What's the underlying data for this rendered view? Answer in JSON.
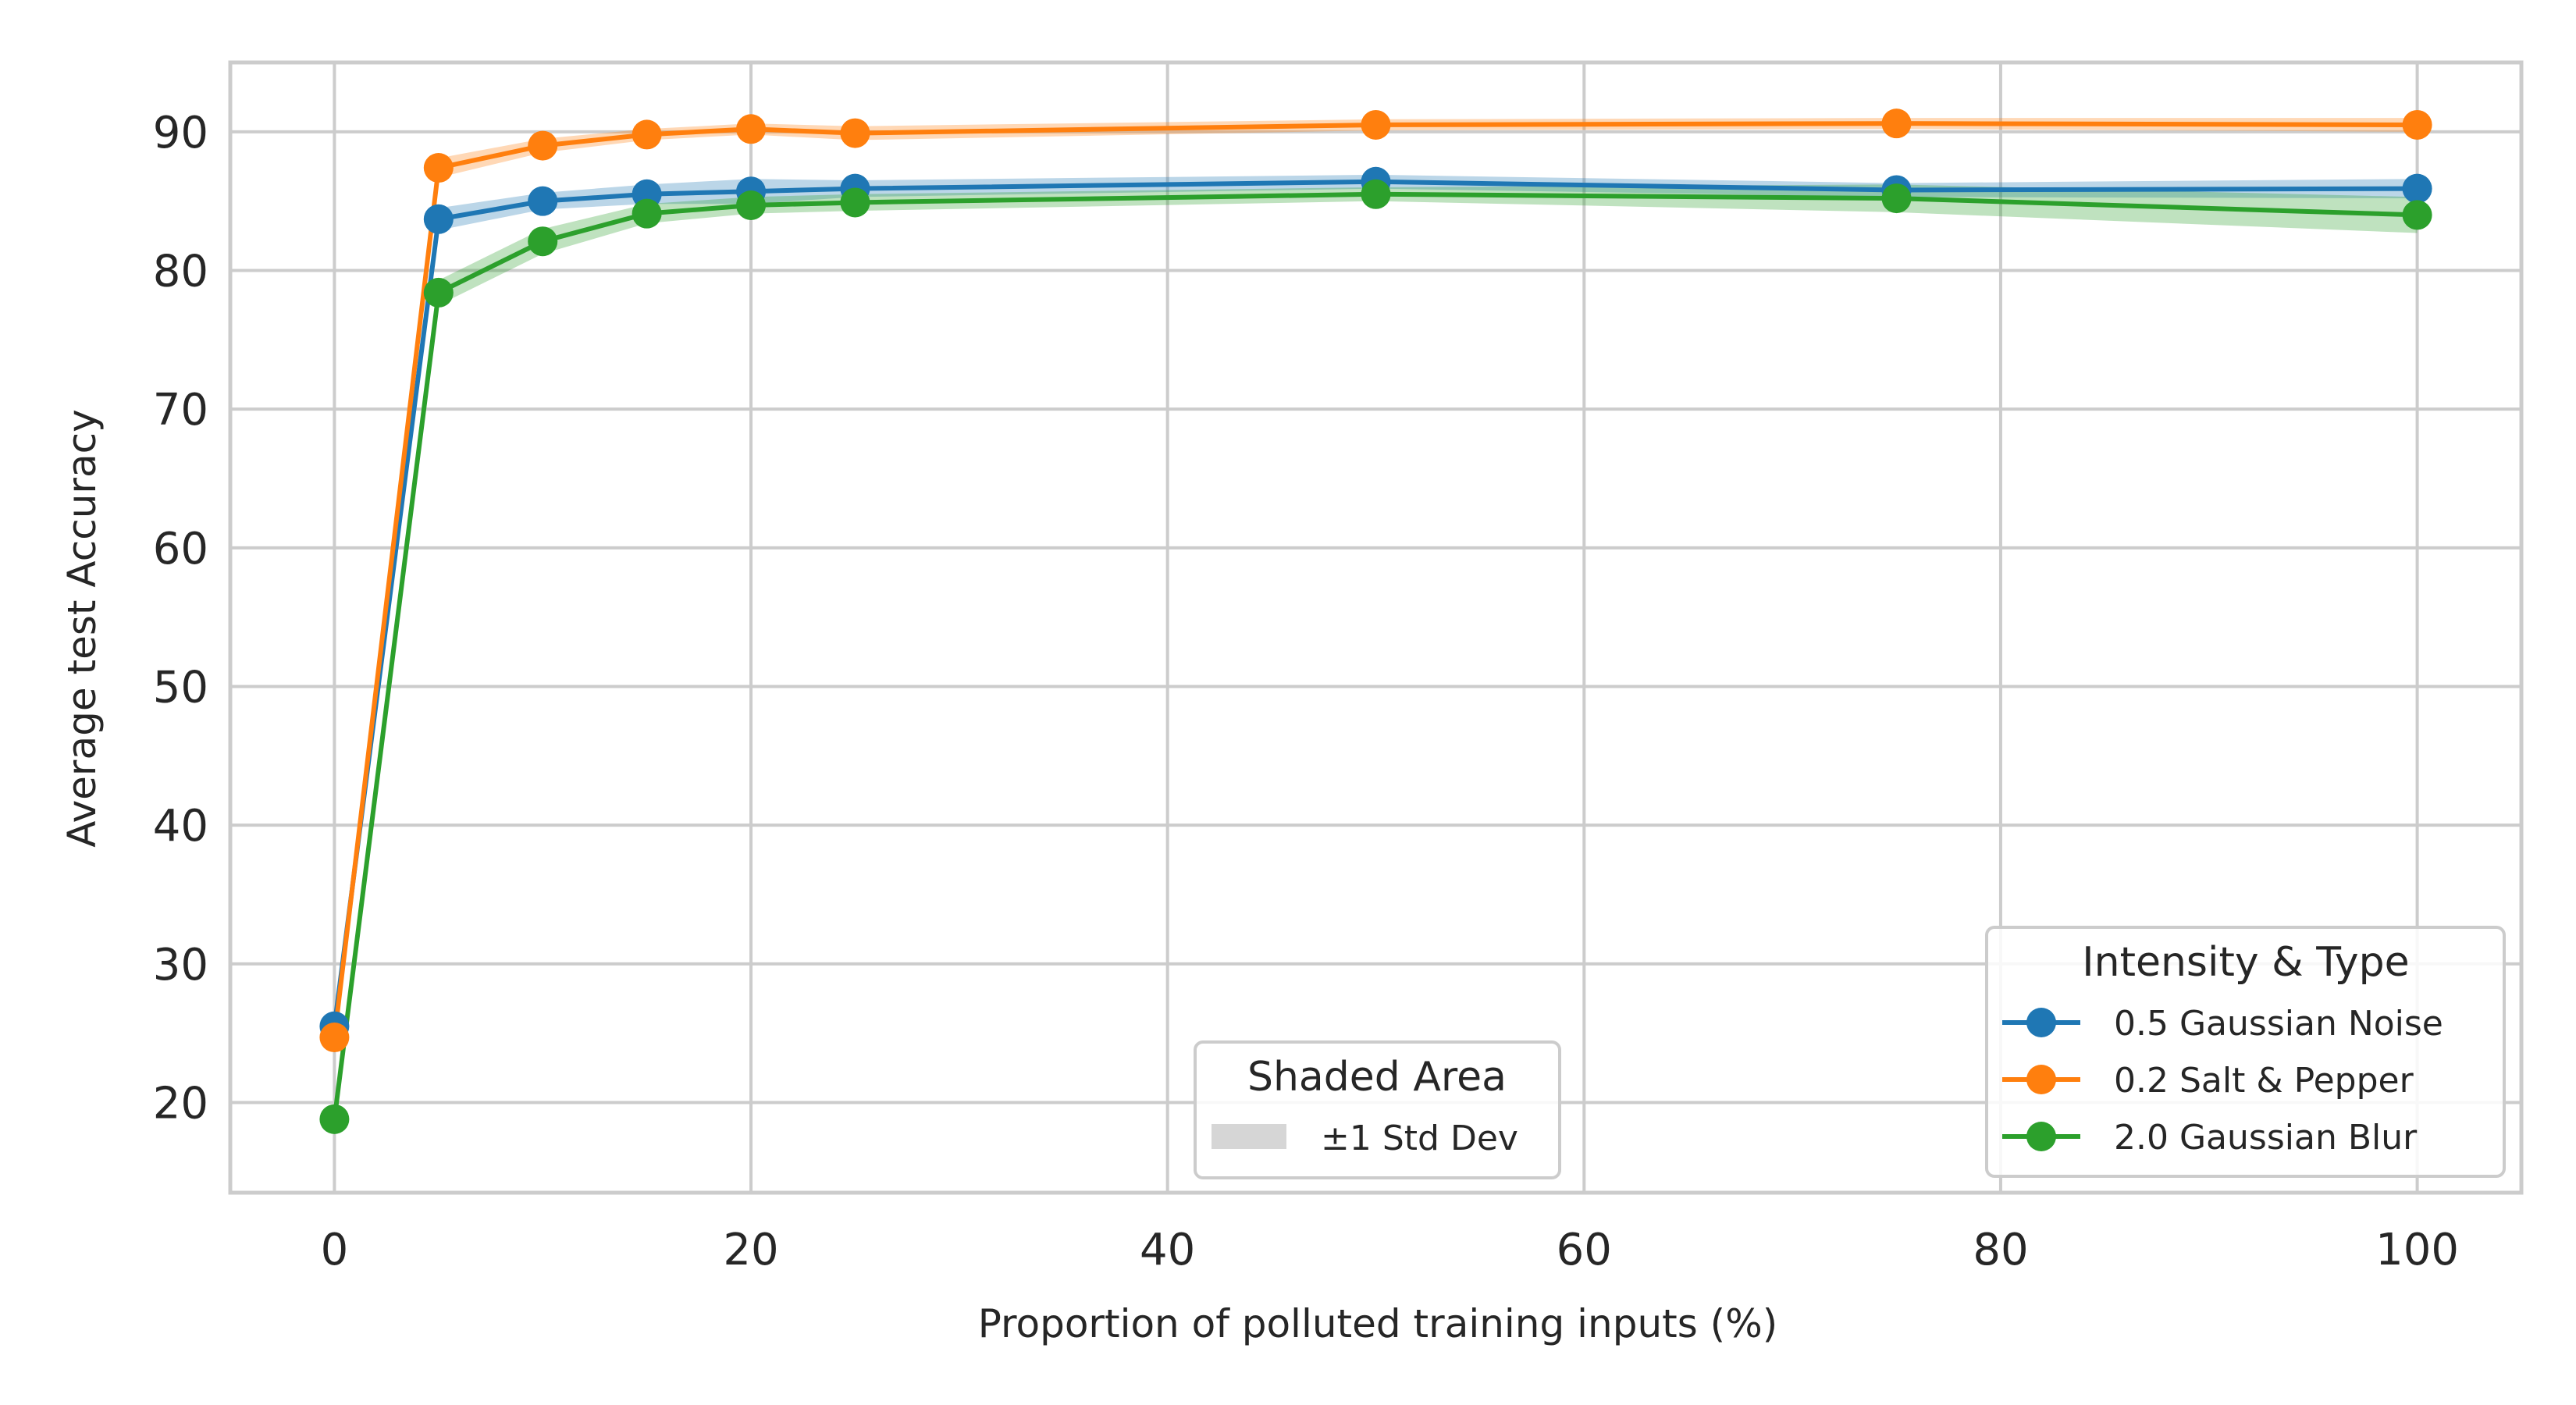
{
  "chart_data": {
    "type": "line",
    "title": "",
    "xlabel": "Proportion of polluted training inputs (%)",
    "ylabel": "Average test Accuracy",
    "xlim": [
      -5,
      105
    ],
    "ylim": [
      13.5,
      95
    ],
    "xticks": [
      0,
      20,
      40,
      60,
      80,
      100
    ],
    "yticks": [
      20,
      30,
      40,
      50,
      60,
      70,
      80,
      90
    ],
    "x": [
      0,
      5,
      10,
      15,
      20,
      25,
      50,
      75,
      100
    ],
    "grid": true,
    "series": [
      {
        "name": "0.5 Gaussian Noise",
        "color": "#1f77b4",
        "values": [
          25.5,
          83.7,
          85.0,
          85.5,
          85.7,
          85.9,
          86.4,
          85.8,
          85.9
        ],
        "std": [
          1.0,
          0.8,
          0.6,
          0.7,
          0.9,
          0.6,
          0.5,
          0.5,
          0.7
        ]
      },
      {
        "name": "0.2 Salt & Pepper",
        "color": "#ff7f0e",
        "values": [
          24.7,
          87.4,
          89.0,
          89.8,
          90.2,
          89.9,
          90.5,
          90.6,
          90.5
        ],
        "std": [
          1.2,
          0.7,
          0.5,
          0.4,
          0.4,
          0.5,
          0.4,
          0.4,
          0.5
        ]
      },
      {
        "name": "2.0 Gaussian Blur",
        "color": "#2ca02c",
        "values": [
          18.8,
          78.4,
          82.1,
          84.1,
          84.7,
          84.9,
          85.5,
          85.2,
          84.0
        ],
        "std": [
          1.2,
          0.9,
          0.9,
          0.7,
          0.6,
          0.6,
          0.5,
          1.0,
          1.3
        ]
      }
    ],
    "legends": {
      "series_legend": {
        "title": "Intensity & Type",
        "position": "lower-right"
      },
      "shade_legend": {
        "title": "Shaded Area",
        "label": "±1 Std Dev",
        "color": "#d6d6d6",
        "position": "lower-center"
      }
    }
  }
}
